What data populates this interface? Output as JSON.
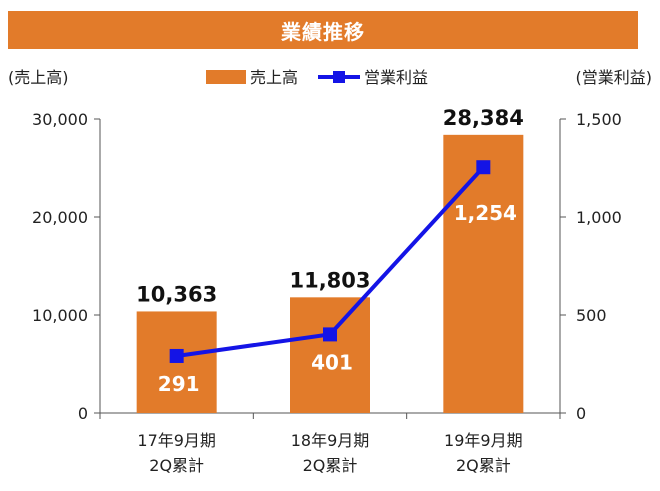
{
  "header": {
    "title": "業績推移"
  },
  "chart_data": {
    "type": "bar",
    "categories": [
      [
        "17年9月期",
        "2Q累計"
      ],
      [
        "18年9月期",
        "2Q累計"
      ],
      [
        "19年9月期",
        "2Q累計"
      ]
    ],
    "series": [
      {
        "name": "売上高",
        "kind": "bar",
        "axis": "left",
        "values": [
          10363,
          11803,
          28384
        ],
        "labels": [
          "10,363",
          "11,803",
          "28,384"
        ],
        "color": "#E27B2A"
      },
      {
        "name": "営業利益",
        "kind": "line",
        "axis": "right",
        "values": [
          291,
          401,
          1254
        ],
        "labels": [
          "291",
          "401",
          "1,254"
        ],
        "color": "#1414E6"
      }
    ],
    "ylabel_left": "(売上高)",
    "ylabel_right": "(営業利益)",
    "ylim_left": [
      0,
      30000
    ],
    "ylim_right": [
      0,
      1500
    ],
    "yticks_left": [
      "0",
      "10,000",
      "20,000",
      "30,000"
    ],
    "yticks_right": [
      "0",
      "500",
      "1,000",
      "1,500"
    ],
    "legend_position": "top-center",
    "grid": false
  }
}
